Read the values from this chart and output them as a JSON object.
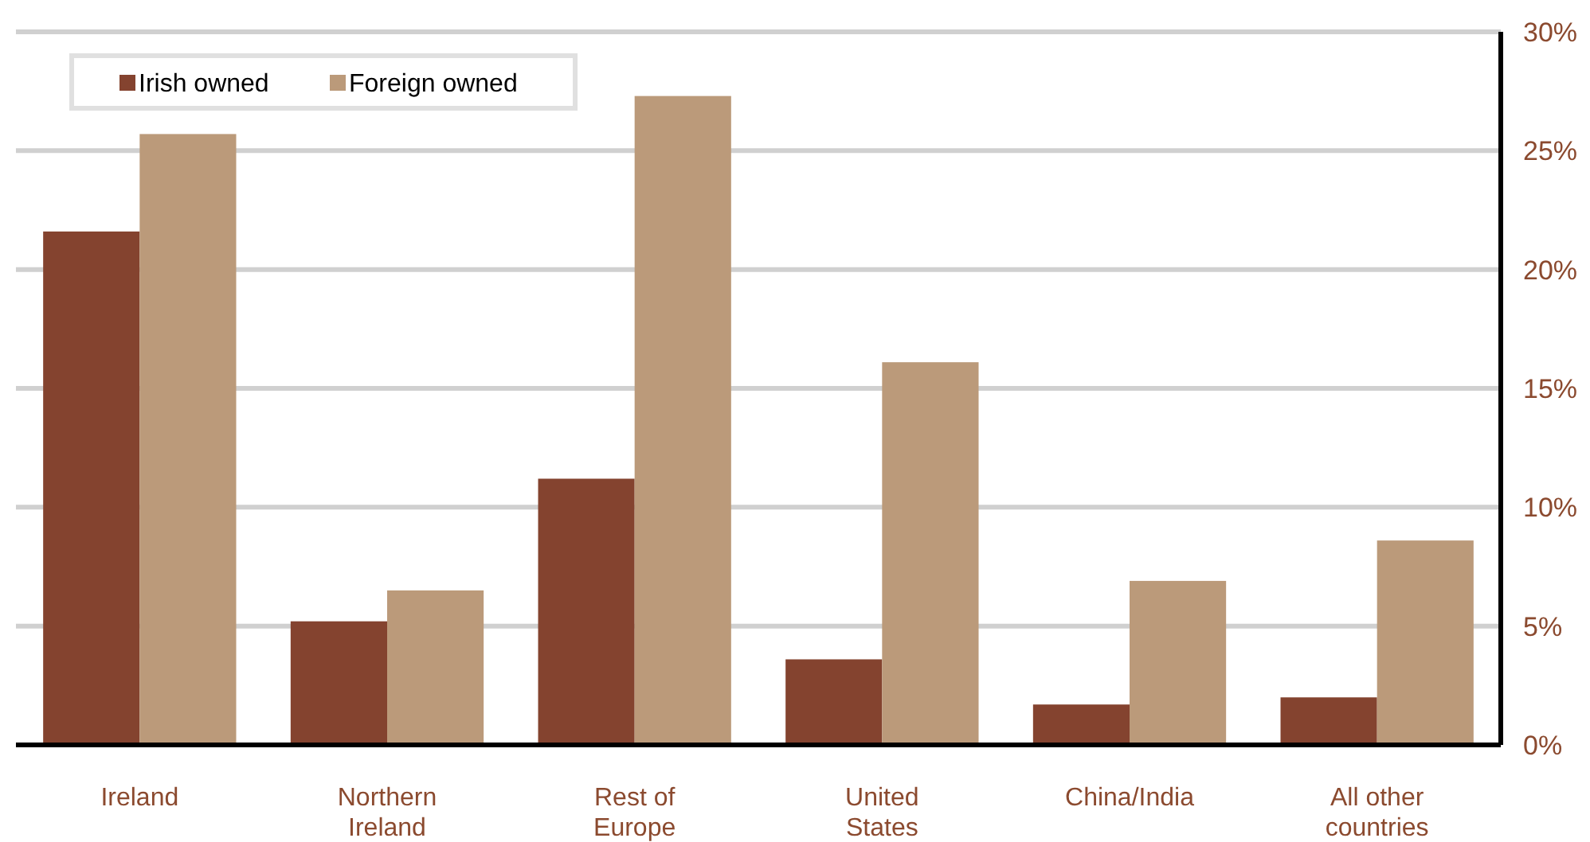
{
  "chart_data": {
    "type": "bar",
    "categories": [
      "Ireland",
      "Northern Ireland",
      "Rest of Europe",
      "United States",
      "China/India",
      "All other countries"
    ],
    "series": [
      {
        "name": "Irish owned",
        "color": "#84432f",
        "values": [
          21.6,
          5.2,
          11.2,
          3.6,
          1.7,
          2.0
        ]
      },
      {
        "name": "Foreign owned",
        "color": "#bb9a7a",
        "values": [
          25.7,
          6.5,
          27.3,
          16.1,
          6.9,
          8.6
        ]
      }
    ],
    "ylim": [
      0,
      30
    ],
    "yticks": [
      {
        "value": 0,
        "label": "0%"
      },
      {
        "value": 5,
        "label": "5%"
      },
      {
        "value": 10,
        "label": "10%"
      },
      {
        "value": 15,
        "label": "15%"
      },
      {
        "value": 20,
        "label": "20%"
      },
      {
        "value": 25,
        "label": "25%"
      },
      {
        "value": 30,
        "label": "30%"
      }
    ],
    "grid": "y",
    "legend": "top left"
  }
}
